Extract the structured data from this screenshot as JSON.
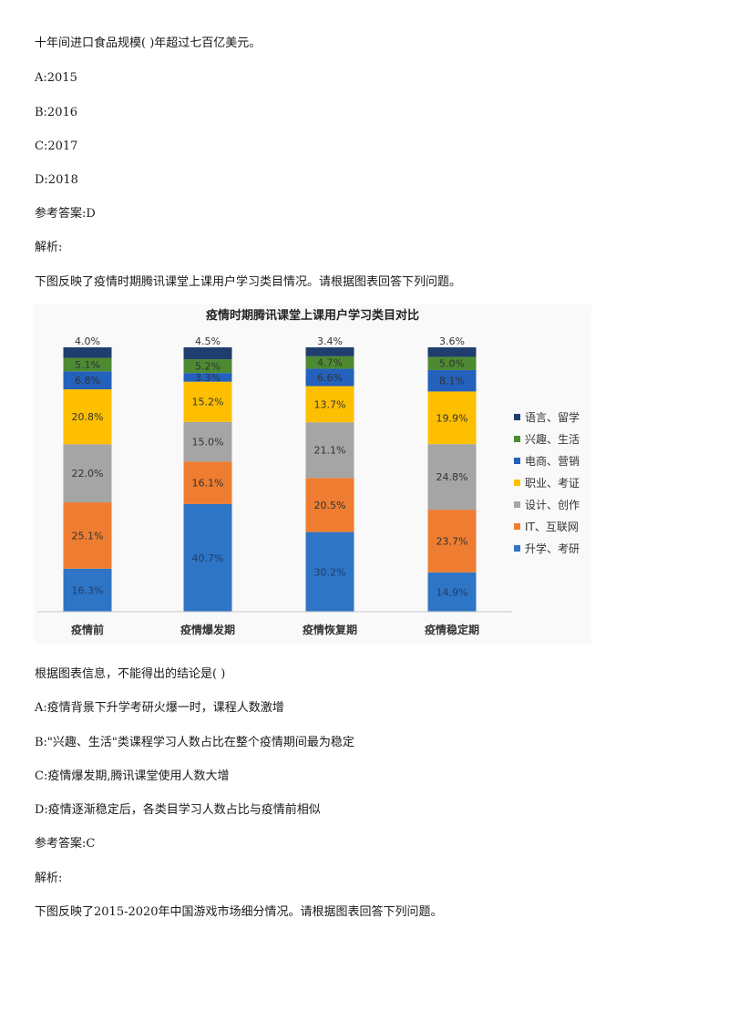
{
  "q1": {
    "stem": "十年间进口食品规模( )年超过七百亿美元。",
    "options": [
      "A:2015",
      "B:2016",
      "C:2017",
      "D:2018"
    ],
    "answer": "参考答案:D",
    "analysis": "解析:"
  },
  "intro": "下图反映了疫情时期腾讯课堂上课用户学习类目情况。请根据图表回答下列问题。",
  "chart_data": {
    "type": "bar",
    "stacked": true,
    "title": "疫情时期腾讯课堂上课用户学习类目对比",
    "categories": [
      "疫情前",
      "疫情爆发期",
      "疫情恢复期",
      "疫情稳定期"
    ],
    "legend_position": "right",
    "series": [
      {
        "name": "升学、考研",
        "color": "#2e75c6",
        "values": [
          16.3,
          40.7,
          30.2,
          14.9
        ],
        "labels": [
          "16.3%",
          "40.7%",
          "30.2%",
          "14.9%"
        ]
      },
      {
        "name": "IT、互联网",
        "color": "#ee7d31",
        "values": [
          25.1,
          16.1,
          20.5,
          23.7
        ],
        "labels": [
          "25.1%",
          "16.1%",
          "20.5%",
          "23.7%"
        ]
      },
      {
        "name": "设计、创作",
        "color": "#a5a5a5",
        "values": [
          22.0,
          15.0,
          21.1,
          24.8
        ],
        "labels": [
          "22.0%",
          "15.0%",
          "21.1%",
          "24.8%"
        ]
      },
      {
        "name": "职业、考证",
        "color": "#fdbf00",
        "values": [
          20.8,
          15.2,
          13.7,
          19.9
        ],
        "labels": [
          "20.8%",
          "15.2%",
          "13.7%",
          "19.9%"
        ]
      },
      {
        "name": "电商、营销",
        "color": "#2361bd",
        "values": [
          6.8,
          3.3,
          6.6,
          8.1
        ],
        "labels": [
          "6.8%",
          "3.3%",
          "6.6%",
          "8.1%"
        ]
      },
      {
        "name": "兴趣、生活",
        "color": "#4d8a32",
        "values": [
          5.1,
          5.2,
          4.7,
          5.0
        ],
        "labels": [
          "5.1%",
          "5.2%",
          "4.7%",
          "5.0%"
        ]
      },
      {
        "name": "语言、留学",
        "color": "#1f3d6d",
        "values": [
          4.0,
          4.5,
          3.4,
          3.6
        ],
        "labels": [
          "4.0%",
          "4.5%",
          "3.4%",
          "3.6%"
        ]
      }
    ],
    "legend_order": [
      "语言、留学",
      "兴趣、生活",
      "电商、营销",
      "职业、考证",
      "设计、创作",
      "IT、互联网",
      "升学、考研"
    ],
    "grid": false
  },
  "q2": {
    "stem": "根据图表信息，不能得出的结论是( )",
    "options": [
      "A:疫情背景下升学考研火爆一时，课程人数激增",
      "B:\"兴趣、生活\"类课程学习人数占比在整个疫情期间最为稳定",
      "C:疫情爆发期,腾讯课堂使用人数大增",
      "D:疫情逐渐稳定后，各类目学习人数占比与疫情前相似"
    ],
    "answer": "参考答案:C",
    "analysis": "解析:"
  },
  "outro": "下图反映了2015-2020年中国游戏市场细分情况。请根据图表回答下列问题。"
}
